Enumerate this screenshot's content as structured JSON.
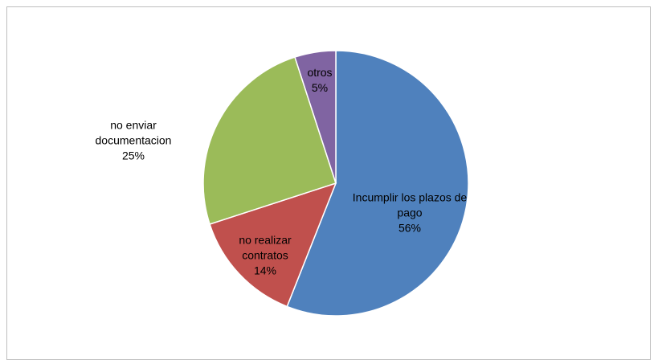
{
  "chart_data": {
    "type": "pie",
    "categories": [
      "Incumplir los plazos de pago",
      "no realizar contratos",
      "no enviar documentacion",
      "otros"
    ],
    "values": [
      56,
      14,
      25,
      5
    ],
    "value_labels": [
      "56%",
      "14%",
      "25%",
      "5%"
    ],
    "colors": [
      "#4f81bd",
      "#c0504d",
      "#9bbb59",
      "#8064a2"
    ]
  }
}
